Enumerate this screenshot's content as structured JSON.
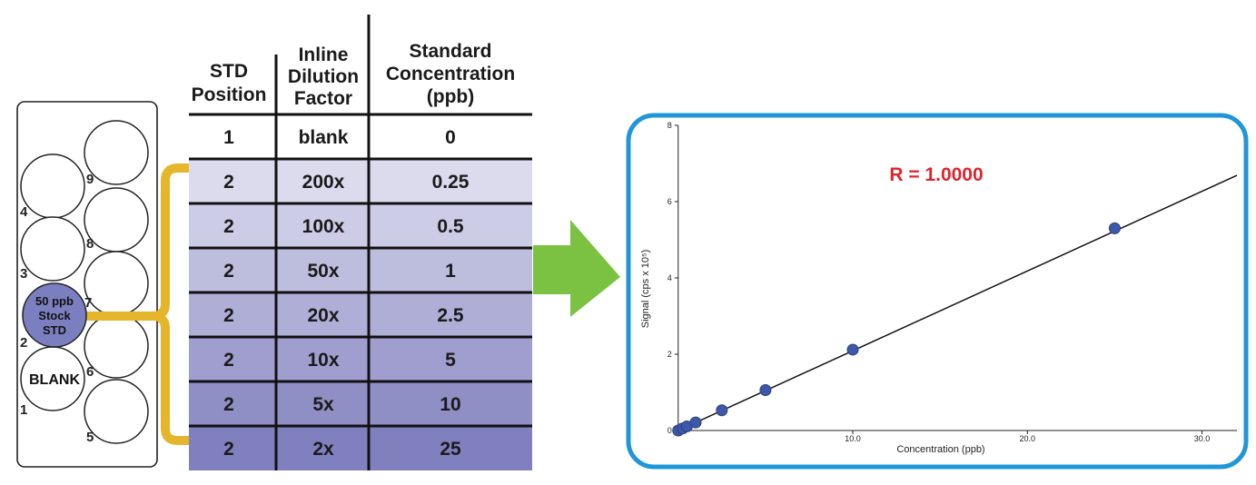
{
  "rack": {
    "positions": [
      {
        "number": "9"
      },
      {
        "number": "4"
      },
      {
        "number": "8"
      },
      {
        "number": "3"
      },
      {
        "number": "7"
      },
      {
        "number": "2"
      },
      {
        "number": "6"
      },
      {
        "number": "1"
      },
      {
        "number": "5"
      }
    ],
    "stock_label": [
      "50 ppb",
      "Stock",
      "STD"
    ],
    "blank_label": "BLANK"
  },
  "colors": {
    "bracket": "#e5b62c",
    "arrow": "#7cc242",
    "chart_frame": "#1e96d8",
    "stock_circle": "#7c7fbf",
    "r_text": "#e0242a",
    "marker": "#3e58a8"
  },
  "table": {
    "headers": [
      [
        "STD",
        "Position"
      ],
      [
        "Inline",
        "Dilution",
        "Factor"
      ],
      [
        "Standard",
        "Concentration",
        "(ppb)"
      ]
    ],
    "rows": [
      [
        "1",
        "blank",
        "0"
      ],
      [
        "2",
        "200x",
        "0.25"
      ],
      [
        "2",
        "100x",
        "0.5"
      ],
      [
        "2",
        "50x",
        "1"
      ],
      [
        "2",
        "20x",
        "2.5"
      ],
      [
        "2",
        "10x",
        "5"
      ],
      [
        "2",
        "5x",
        "10"
      ],
      [
        "2",
        "2x",
        "25"
      ]
    ]
  },
  "chart_data": {
    "type": "scatter",
    "annotation": "R = 1.0000",
    "xlabel": "Concentration (ppb)",
    "ylabel": "Signal (cps x 10⁵)",
    "xlim": [
      -0.3,
      32
    ],
    "ylim": [
      0,
      8
    ],
    "x_ticks": [
      {
        "value": 10,
        "label": "10.0"
      },
      {
        "value": 20,
        "label": "20.0"
      },
      {
        "value": 30,
        "label": "30.0"
      }
    ],
    "y_ticks": [
      {
        "value": 0,
        "label": "0"
      },
      {
        "value": 2,
        "label": "2"
      },
      {
        "value": 4,
        "label": "4"
      },
      {
        "value": 6,
        "label": "6"
      },
      {
        "value": 8,
        "label": "8"
      }
    ],
    "points": [
      {
        "x": 0,
        "y": 0
      },
      {
        "x": 0.25,
        "y": 0.053
      },
      {
        "x": 0.5,
        "y": 0.106
      },
      {
        "x": 1,
        "y": 0.212
      },
      {
        "x": 2.5,
        "y": 0.53
      },
      {
        "x": 5,
        "y": 1.06
      },
      {
        "x": 10,
        "y": 2.12
      },
      {
        "x": 25,
        "y": 5.3
      }
    ],
    "fit_line": {
      "x": [
        0,
        32
      ],
      "y": [
        0,
        6.69
      ]
    },
    "grid": false
  }
}
